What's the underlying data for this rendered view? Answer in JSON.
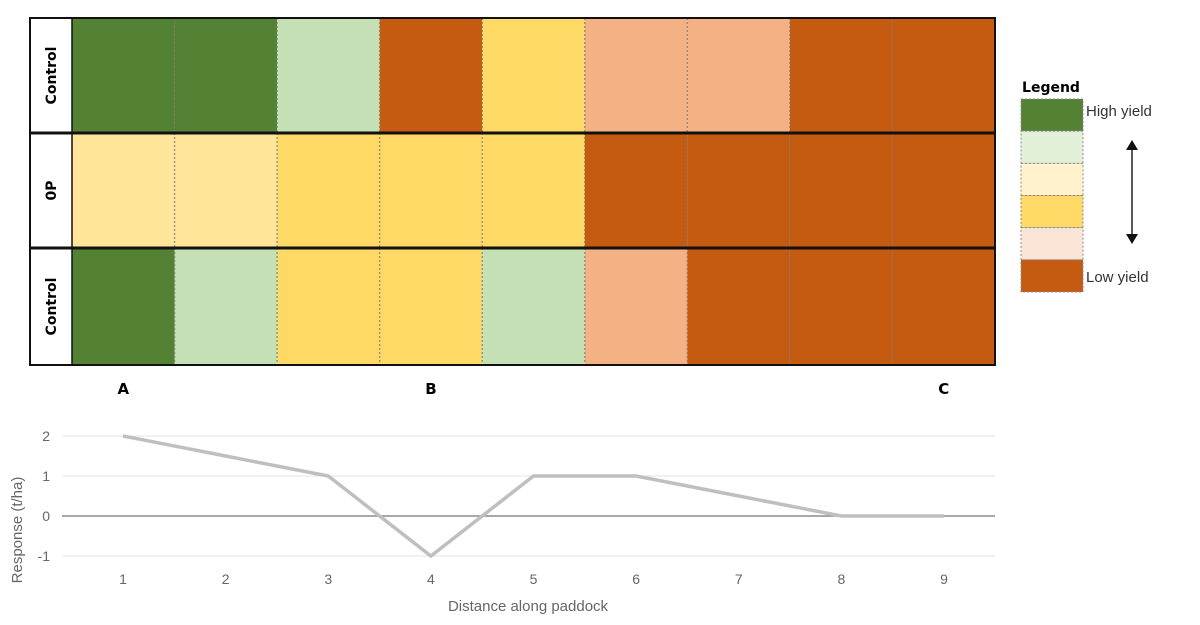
{
  "chart_data": [
    {
      "type": "heatmap",
      "row_labels": [
        "Control",
        "0P",
        "Control"
      ],
      "column_count": 9,
      "cells": [
        [
          "dark_green",
          "dark_green",
          "light_green",
          "orange",
          "yellow",
          "salmon",
          "salmon",
          "orange",
          "orange"
        ],
        [
          "pale_yellow",
          "pale_yellow",
          "yellow",
          "yellow",
          "yellow",
          "orange",
          "orange",
          "orange",
          "orange"
        ],
        [
          "dark_green",
          "light_green",
          "yellow",
          "yellow",
          "light_green",
          "salmon",
          "orange",
          "orange",
          "orange"
        ]
      ],
      "position_labels": [
        {
          "label": "A",
          "column": 1
        },
        {
          "label": "B",
          "column": 4
        },
        {
          "label": "C",
          "column": 9
        }
      ],
      "colors": {
        "dark_green": "#548235",
        "light_green": "#c5e0b4",
        "pale_yellow": "#fee599",
        "yellow": "#ffd966",
        "salmon": "#f4b183",
        "orange": "#c55a11"
      },
      "legend": {
        "title": "Legend",
        "high_label": "High yield",
        "low_label": "Low yield",
        "swatches": [
          "#548235",
          "#e2f0d9",
          "#fff2cc",
          "#ffd966",
          "#fbe5d6",
          "#c55a11"
        ],
        "placement": "right"
      }
    },
    {
      "type": "line",
      "x": [
        1,
        2,
        3,
        4,
        5,
        6,
        7,
        8,
        9
      ],
      "series": [
        {
          "values": [
            2,
            1.5,
            1,
            -1,
            1,
            1,
            0.5,
            0,
            0
          ],
          "color": "#bfbfbf"
        }
      ],
      "xlabel": "Distance along paddock",
      "ylabel": "Response (t/ha)",
      "x_ticks": [
        "1",
        "2",
        "3",
        "4",
        "5",
        "6",
        "7",
        "8",
        "9"
      ],
      "y_ticks": [
        "2",
        "1",
        "0",
        "-1"
      ],
      "ylim": [
        -1,
        2
      ],
      "grid": true
    }
  ]
}
